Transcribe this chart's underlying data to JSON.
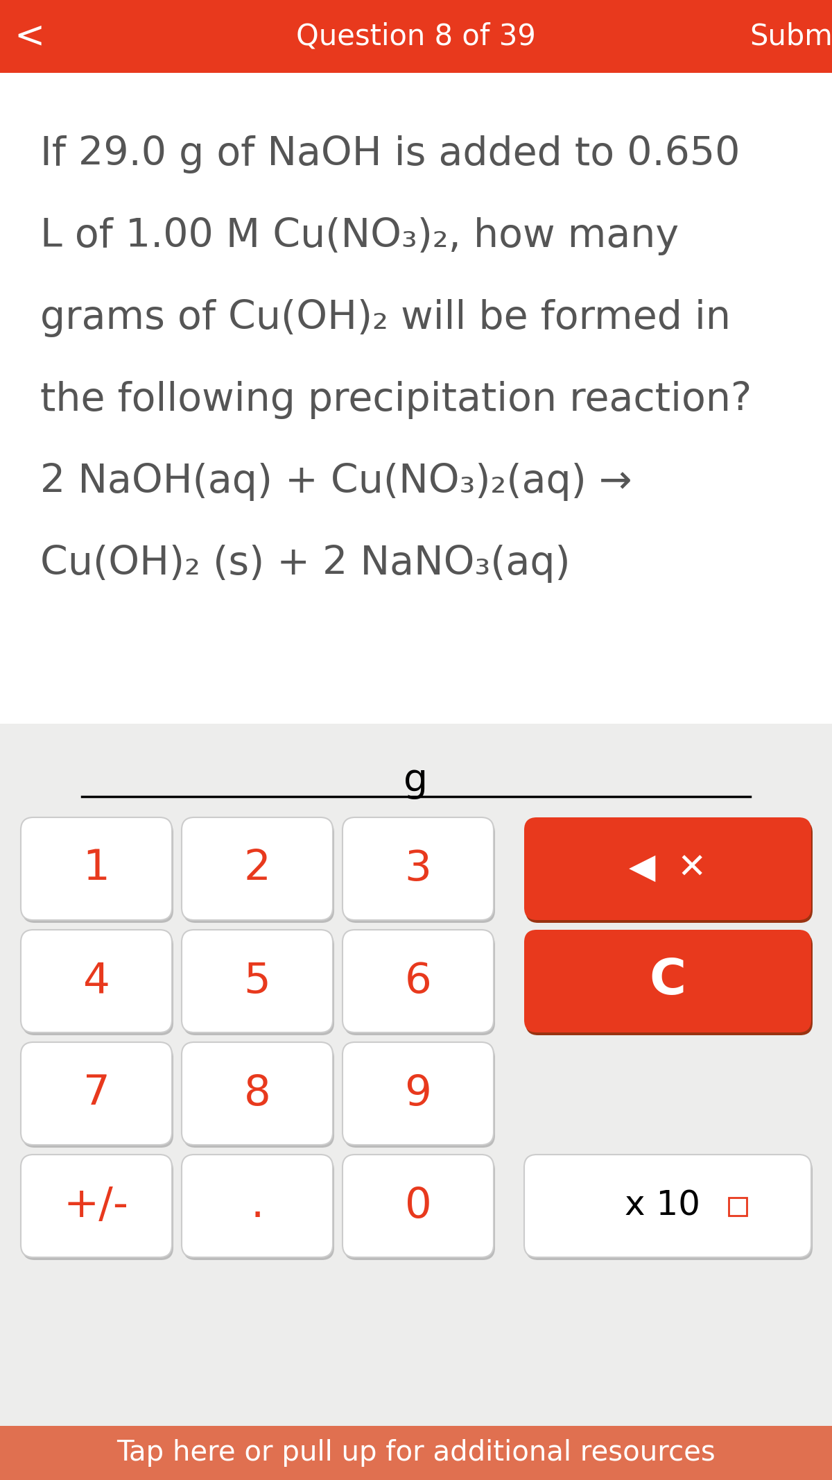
{
  "header_color": "#E8391D",
  "header_text": "Question 8 of 39",
  "submit_text": "Submit",
  "back_arrow": "<",
  "bg_white": "#FFFFFF",
  "bg_gray": "#EDEDEC",
  "text_color": "#555555",
  "red_color": "#E8391D",
  "question_lines": [
    "If 29.0 g of NaOH is added to 0.650",
    "L of 1.00 M Cu(NO₃)₂, how many",
    "grams of Cu(OH)₂ will be formed in",
    "the following precipitation reaction?",
    "2 NaOH(aq) + Cu(NO₃)₂(aq) →",
    "Cu(OH)₂ (s) + 2 NaNO₃(aq)"
  ],
  "input_label": "g",
  "keypad_buttons": [
    [
      "1",
      "2",
      "3"
    ],
    [
      "4",
      "5",
      "6"
    ],
    [
      "7",
      "8",
      "9"
    ],
    [
      "+/-",
      ".",
      "0"
    ]
  ],
  "footer_text": "Tap here or pull up for additional resources",
  "footer_color": "#E07050",
  "footer_text_color": "#FFFFFF"
}
